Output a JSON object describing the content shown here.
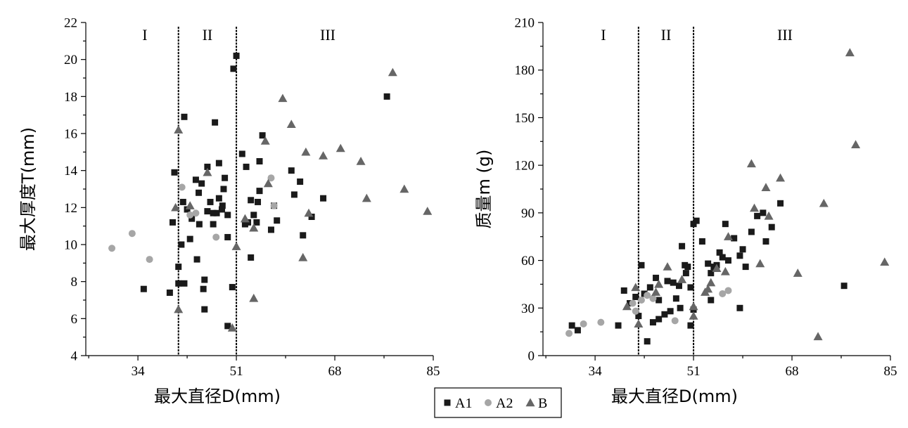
{
  "legend": [
    {
      "key": "A1",
      "label": "A1",
      "marker": "square",
      "color": "#1a1a1a"
    },
    {
      "key": "A2",
      "label": "A2",
      "marker": "circle",
      "color": "#a6a6a6"
    },
    {
      "key": "B",
      "label": "B",
      "marker": "triangle",
      "color": "#666666"
    }
  ],
  "chart_data": [
    {
      "type": "scatter",
      "title": "",
      "xlabel": "最大直径D(mm)",
      "ylabel": "最大厚度T(mm)",
      "xlim": [
        25,
        85
      ],
      "ylim": [
        4,
        22
      ],
      "xticks": [
        34,
        51,
        68,
        85
      ],
      "yticks": [
        4,
        6,
        8,
        10,
        12,
        14,
        16,
        18,
        20,
        22
      ],
      "regions": [
        "I",
        "II",
        "III"
      ],
      "dividers": [
        41,
        51
      ],
      "series": [
        {
          "name": "A1",
          "points": [
            [
              35,
              7.6
            ],
            [
              39.5,
              7.4
            ],
            [
              40,
              11.2
            ],
            [
              40.3,
              13.9
            ],
            [
              41,
              8.8
            ],
            [
              41,
              7.9
            ],
            [
              41.5,
              10
            ],
            [
              41.8,
              12.3
            ],
            [
              42,
              7.9
            ],
            [
              42,
              16.9
            ],
            [
              42.5,
              11.9
            ],
            [
              43,
              10.3
            ],
            [
              43.3,
              11.4
            ],
            [
              44,
              13.5
            ],
            [
              44.2,
              9.2
            ],
            [
              44.5,
              12.8
            ],
            [
              44.6,
              11.1
            ],
            [
              45,
              13.3
            ],
            [
              45.5,
              6.5
            ],
            [
              45.5,
              8.1
            ],
            [
              45.3,
              7.6
            ],
            [
              46,
              11.8
            ],
            [
              46,
              14.2
            ],
            [
              46.5,
              12.3
            ],
            [
              47,
              11.7
            ],
            [
              47,
              11.1
            ],
            [
              47.3,
              16.6
            ],
            [
              47.6,
              11.7
            ],
            [
              48,
              12.5
            ],
            [
              48,
              14.4
            ],
            [
              48.5,
              11.9
            ],
            [
              48.6,
              12.1
            ],
            [
              48.8,
              13
            ],
            [
              49,
              13.6
            ],
            [
              49.5,
              5.6
            ],
            [
              49.5,
              11.6
            ],
            [
              49.5,
              10.4
            ],
            [
              50.5,
              19.5
            ],
            [
              51,
              20.2
            ],
            [
              50.3,
              7.7
            ],
            [
              52,
              14.9
            ],
            [
              52.5,
              11.1
            ],
            [
              52.7,
              14.2
            ],
            [
              53,
              11.2
            ],
            [
              53.5,
              12.4
            ],
            [
              53.5,
              9.3
            ],
            [
              54,
              11.6
            ],
            [
              54.5,
              11.2
            ],
            [
              54.7,
              12.3
            ],
            [
              55,
              12.9
            ],
            [
              55,
              14.5
            ],
            [
              55.5,
              15.9
            ],
            [
              57,
              10.8
            ],
            [
              57.5,
              12.1
            ],
            [
              58,
              11.3
            ],
            [
              60.5,
              14
            ],
            [
              61,
              12.7
            ],
            [
              62,
              13.4
            ],
            [
              62.5,
              10.5
            ],
            [
              64,
              11.5
            ],
            [
              66,
              12.5
            ],
            [
              77,
              18
            ]
          ]
        },
        {
          "name": "A2",
          "points": [
            [
              29.5,
              9.8
            ],
            [
              33,
              10.6
            ],
            [
              36,
              9.2
            ],
            [
              41.6,
              13.1
            ],
            [
              43,
              11.6
            ],
            [
              44,
              11.7
            ],
            [
              47.5,
              10.4
            ],
            [
              57,
              13.6
            ],
            [
              57.5,
              12.1
            ]
          ]
        },
        {
          "name": "B",
          "points": [
            [
              41,
              16.2
            ],
            [
              40.5,
              12
            ],
            [
              41,
              6.5
            ],
            [
              43,
              12.1
            ],
            [
              46,
              13.9
            ],
            [
              50.3,
              5.5
            ],
            [
              51,
              9.9
            ],
            [
              52.5,
              11.4
            ],
            [
              54,
              10.9
            ],
            [
              54,
              7.1
            ],
            [
              56,
              15.6
            ],
            [
              56.5,
              13.3
            ],
            [
              59,
              17.9
            ],
            [
              60.5,
              16.5
            ],
            [
              63,
              15
            ],
            [
              63.5,
              11.7
            ],
            [
              62.5,
              9.3
            ],
            [
              66,
              14.8
            ],
            [
              69,
              15.2
            ],
            [
              72.5,
              14.5
            ],
            [
              73.5,
              12.5
            ],
            [
              78,
              19.3
            ],
            [
              80,
              13
            ],
            [
              84,
              11.8
            ]
          ]
        }
      ]
    },
    {
      "type": "scatter",
      "title": "",
      "xlabel": "最大直径D(mm)",
      "ylabel": "质量m (g)",
      "xlim": [
        25,
        85
      ],
      "ylim": [
        0,
        210
      ],
      "xticks": [
        34,
        51,
        68,
        85
      ],
      "yticks": [
        0,
        30,
        60,
        90,
        120,
        150,
        180,
        210
      ],
      "regions": [
        "I",
        "II",
        "III"
      ],
      "dividers": [
        41.5,
        51
      ],
      "series": [
        {
          "name": "A1",
          "points": [
            [
              30,
              19
            ],
            [
              31,
              16
            ],
            [
              38,
              19
            ],
            [
              39,
              41
            ],
            [
              40,
              33
            ],
            [
              41,
              37
            ],
            [
              41.5,
              25
            ],
            [
              42,
              57
            ],
            [
              42.5,
              39
            ],
            [
              43,
              9
            ],
            [
              43.5,
              43
            ],
            [
              44,
              21
            ],
            [
              44.5,
              49
            ],
            [
              45,
              35
            ],
            [
              45,
              23
            ],
            [
              46,
              26
            ],
            [
              46.5,
              47
            ],
            [
              47,
              28
            ],
            [
              47.5,
              46
            ],
            [
              48,
              36
            ],
            [
              48.5,
              44
            ],
            [
              48.7,
              30
            ],
            [
              49,
              69
            ],
            [
              49.5,
              57
            ],
            [
              49.7,
              52
            ],
            [
              50,
              56
            ],
            [
              50.5,
              43
            ],
            [
              50.5,
              19
            ],
            [
              51,
              29
            ],
            [
              51,
              83
            ],
            [
              51.5,
              85
            ],
            [
              52.5,
              72
            ],
            [
              53.5,
              58
            ],
            [
              54,
              35
            ],
            [
              54,
              52
            ],
            [
              54.5,
              56
            ],
            [
              55,
              57
            ],
            [
              55.5,
              65
            ],
            [
              56,
              62
            ],
            [
              56.5,
              83
            ],
            [
              57,
              60
            ],
            [
              58,
              74
            ],
            [
              59,
              63
            ],
            [
              59,
              30
            ],
            [
              59.5,
              67
            ],
            [
              60,
              56
            ],
            [
              61,
              78
            ],
            [
              62,
              88
            ],
            [
              63,
              90
            ],
            [
              63.5,
              72
            ],
            [
              64.5,
              81
            ],
            [
              66,
              96
            ],
            [
              77,
              44
            ]
          ]
        },
        {
          "name": "A2",
          "points": [
            [
              29.5,
              14
            ],
            [
              32,
              20
            ],
            [
              35,
              21
            ],
            [
              40.5,
              33
            ],
            [
              41,
              28
            ],
            [
              42,
              35
            ],
            [
              43,
              38
            ],
            [
              44,
              36
            ],
            [
              47.8,
              22
            ],
            [
              56,
              39
            ],
            [
              57,
              41
            ]
          ]
        },
        {
          "name": "B",
          "points": [
            [
              39.5,
              31
            ],
            [
              41,
              43
            ],
            [
              41.5,
              20
            ],
            [
              44.5,
              40
            ],
            [
              45,
              45
            ],
            [
              46.5,
              56
            ],
            [
              49,
              48
            ],
            [
              51,
              31
            ],
            [
              51,
              25
            ],
            [
              53,
              40
            ],
            [
              53.5,
              42
            ],
            [
              54,
              46
            ],
            [
              55,
              55
            ],
            [
              56.5,
              53
            ],
            [
              57,
              75
            ],
            [
              61,
              121
            ],
            [
              61.5,
              93
            ],
            [
              62.5,
              58
            ],
            [
              63.5,
              106
            ],
            [
              64,
              88
            ],
            [
              66,
              112
            ],
            [
              69,
              52
            ],
            [
              72.5,
              12
            ],
            [
              73.5,
              96
            ],
            [
              78,
              191
            ],
            [
              79,
              133
            ],
            [
              84,
              59
            ]
          ]
        }
      ]
    }
  ]
}
